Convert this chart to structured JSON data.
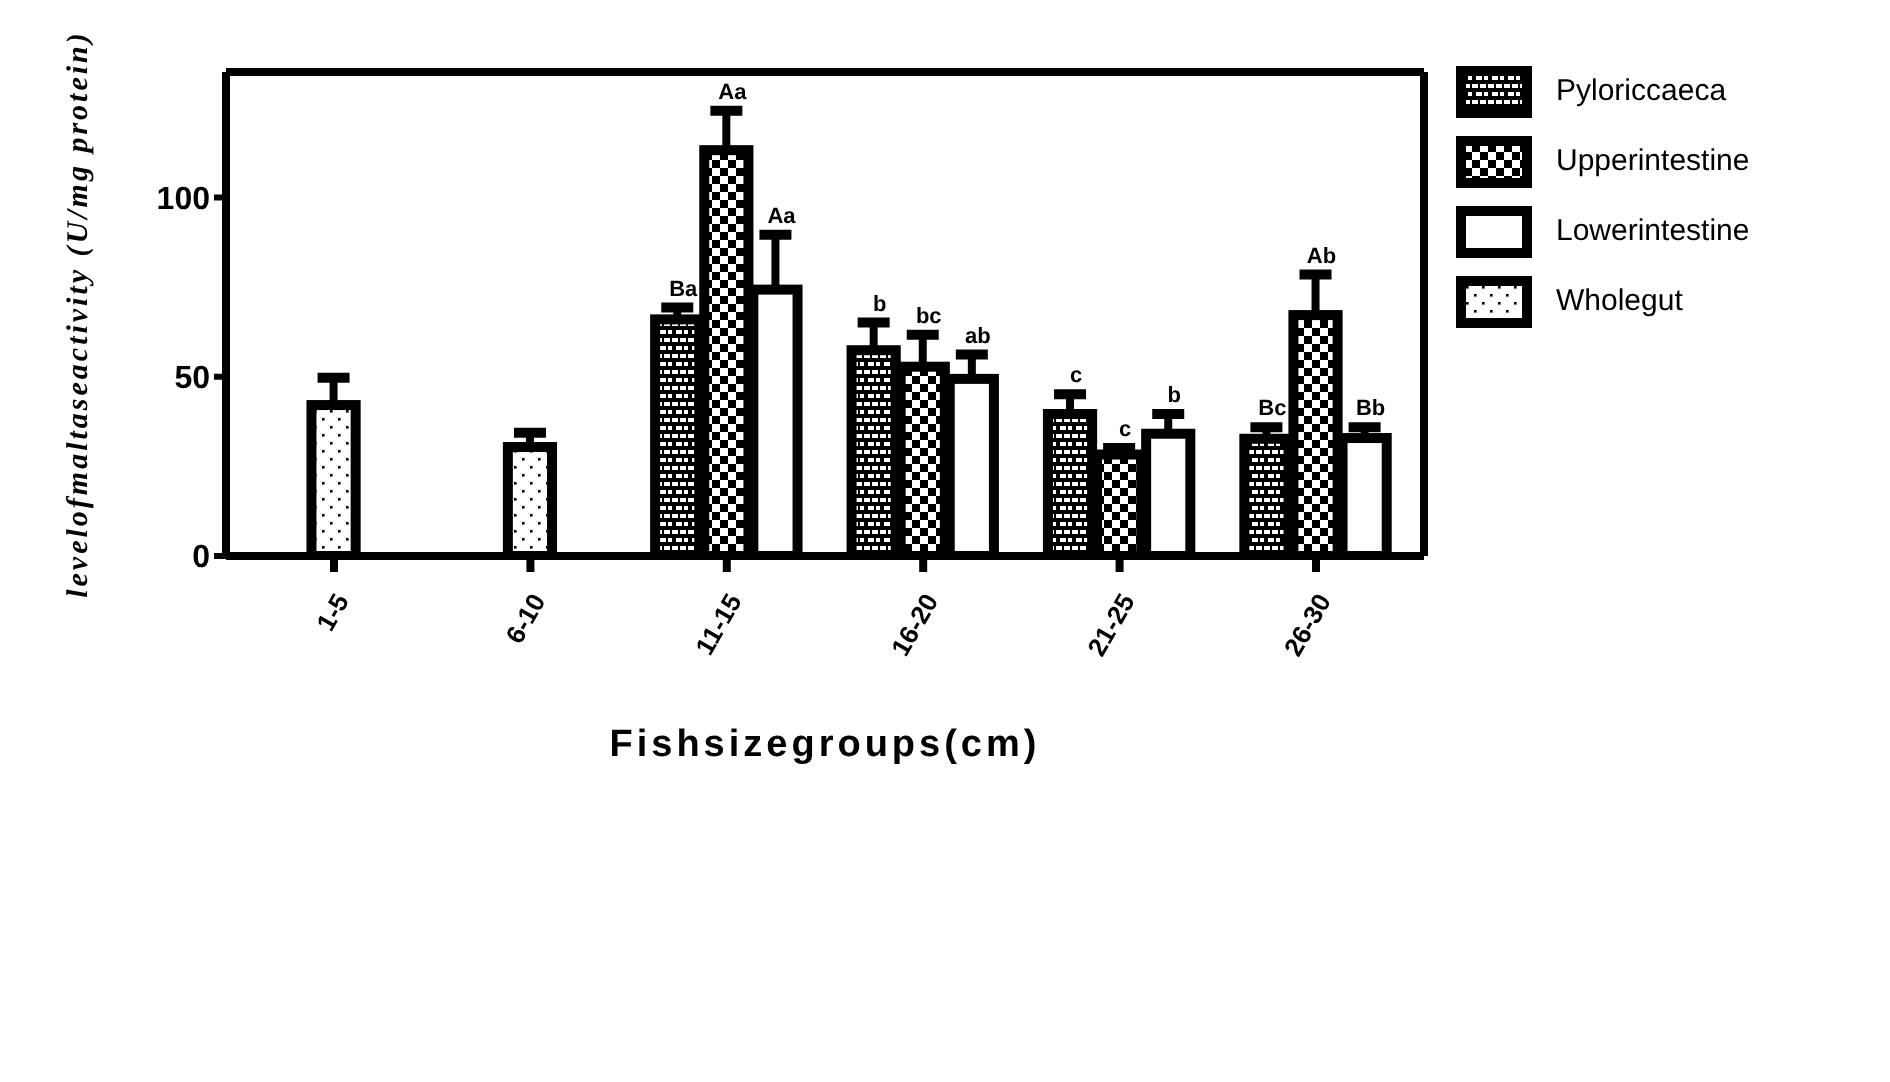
{
  "chart_data": {
    "type": "bar",
    "xlabel": "Fishsizegroups(cm)",
    "ylabel": "levelofmaltaseactivity (U/mg protein)",
    "categories": [
      "1-5",
      "6-10",
      "11-15",
      "16-20",
      "21-25",
      "26-30"
    ],
    "series": [
      {
        "name": "Pyloriccaeca",
        "color": "#000000",
        "values": [
          null,
          null,
          66,
          57.4,
          39.6,
          32.7
        ],
        "errors": [
          null,
          null,
          [
            66,
            69.3
          ],
          [
            57.4,
            65.1
          ],
          [
            39.6,
            45.1
          ],
          [
            32.7,
            35.9
          ]
        ]
      },
      {
        "name": "Upperintestine",
        "color": "#000000",
        "values": [
          null,
          null,
          113.2,
          52.8,
          28.3,
          67.2
        ],
        "errors": [
          null,
          null,
          [
            113.2,
            124.2
          ],
          [
            52.8,
            61.7
          ],
          [
            28.3,
            30.1
          ],
          [
            67.2,
            78.5
          ]
        ]
      },
      {
        "name": "Lowerintestine",
        "color": "#000000",
        "values": [
          null,
          null,
          74.3,
          49.4,
          34.1,
          32.9
        ],
        "errors": [
          null,
          null,
          [
            74.3,
            89.6
          ],
          [
            49.4,
            56.2
          ],
          [
            34.1,
            39.6
          ],
          [
            32.9,
            35.9
          ]
        ]
      },
      {
        "name": "Wholegut",
        "color": "#000000",
        "values": [
          42.1,
          30.4,
          null,
          null,
          null,
          null
        ],
        "errors": [
          [
            42.1,
            49.7
          ],
          [
            30.4,
            34.4
          ],
          null,
          null,
          null,
          null
        ]
      }
    ],
    "ylim": [
      0,
      135
    ],
    "yticks": [
      0,
      50,
      100
    ],
    "grid": false,
    "legend": "top right",
    "annotations": [
      "Ba",
      "Aa",
      "Aa",
      "b",
      "bc",
      "ab",
      "c",
      "c",
      "b",
      "Bc",
      "Ab",
      "Bb"
    ]
  }
}
